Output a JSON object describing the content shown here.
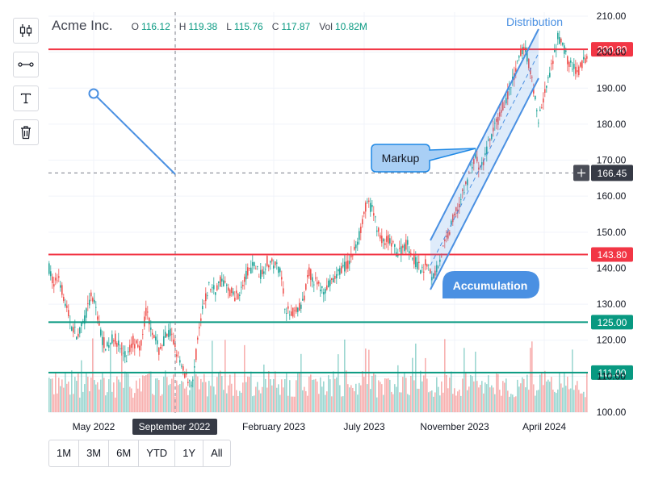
{
  "legend": {
    "ticker": "Acme Inc.",
    "open_label": "O",
    "open": "116.12",
    "high_label": "H",
    "high": "119.38",
    "low_label": "L",
    "low": "115.76",
    "close_label": "C",
    "close": "117.87",
    "vol_label": "Vol",
    "vol": "10.82M"
  },
  "toolbar": [
    {
      "name": "candles-icon"
    },
    {
      "name": "trend-line-icon"
    },
    {
      "name": "text-tool-icon"
    },
    {
      "name": "trash-icon"
    }
  ],
  "ranges": [
    "1M",
    "3M",
    "6M",
    "YTD",
    "1Y",
    "All"
  ],
  "colors": {
    "up": "#26a69a",
    "down": "#ef5350",
    "red_line": "#f23645",
    "green_line": "#089981",
    "drawing": "#4a90e2"
  },
  "chart_data": {
    "type": "candlestick",
    "y_axis": {
      "min": 100,
      "max": 210,
      "ticks": [
        "100.00",
        "110.00",
        "120.00",
        "130.00",
        "140.00",
        "150.00",
        "160.00",
        "170.00",
        "180.00",
        "190.00",
        "200.00",
        "210.00"
      ]
    },
    "x_axis": {
      "ticks": [
        "May 2022",
        "September 2022",
        "February 2023",
        "July 2023",
        "November 2023",
        "April 2024"
      ],
      "crosshair_label": "September 2022"
    },
    "price_path": [
      [
        0,
        140
      ],
      [
        6,
        135
      ],
      [
        12,
        138
      ],
      [
        20,
        130
      ],
      [
        28,
        124
      ],
      [
        36,
        121
      ],
      [
        44,
        126
      ],
      [
        52,
        132
      ],
      [
        58,
        129
      ],
      [
        66,
        120
      ],
      [
        72,
        118
      ],
      [
        80,
        121
      ],
      [
        88,
        118
      ],
      [
        96,
        115
      ],
      [
        104,
        120
      ],
      [
        112,
        117
      ],
      [
        120,
        128
      ],
      [
        128,
        123
      ],
      [
        136,
        117
      ],
      [
        144,
        121
      ],
      [
        150,
        122
      ],
      [
        158,
        117
      ],
      [
        164,
        112
      ],
      [
        170,
        110
      ],
      [
        178,
        108
      ],
      [
        184,
        120
      ],
      [
        190,
        128
      ],
      [
        198,
        135
      ],
      [
        206,
        134
      ],
      [
        214,
        137
      ],
      [
        222,
        134
      ],
      [
        230,
        132
      ],
      [
        238,
        134
      ],
      [
        246,
        139
      ],
      [
        254,
        141
      ],
      [
        262,
        138
      ],
      [
        270,
        142
      ],
      [
        278,
        141
      ],
      [
        286,
        140
      ],
      [
        292,
        130
      ],
      [
        298,
        127
      ],
      [
        306,
        128
      ],
      [
        314,
        130
      ],
      [
        322,
        139
      ],
      [
        330,
        136
      ],
      [
        338,
        134
      ],
      [
        346,
        135
      ],
      [
        354,
        137
      ],
      [
        362,
        140
      ],
      [
        370,
        141
      ],
      [
        378,
        145
      ],
      [
        384,
        149
      ],
      [
        390,
        156
      ],
      [
        396,
        158
      ],
      [
        402,
        155
      ],
      [
        408,
        150
      ],
      [
        414,
        147
      ],
      [
        420,
        148
      ],
      [
        426,
        146
      ],
      [
        432,
        144
      ],
      [
        438,
        146
      ],
      [
        444,
        147
      ],
      [
        450,
        143
      ],
      [
        456,
        141
      ],
      [
        462,
        139
      ],
      [
        468,
        142
      ],
      [
        474,
        137
      ],
      [
        480,
        140
      ],
      [
        486,
        144
      ],
      [
        492,
        148
      ],
      [
        498,
        152
      ],
      [
        504,
        156
      ],
      [
        510,
        159
      ],
      [
        516,
        163
      ],
      [
        522,
        168
      ],
      [
        528,
        171
      ],
      [
        534,
        167
      ],
      [
        540,
        171
      ],
      [
        546,
        176
      ],
      [
        552,
        179
      ],
      [
        558,
        182
      ],
      [
        564,
        186
      ],
      [
        570,
        189
      ],
      [
        576,
        193
      ],
      [
        582,
        198
      ],
      [
        588,
        202
      ],
      [
        594,
        197
      ],
      [
        600,
        190
      ],
      [
        606,
        181
      ],
      [
        612,
        187
      ],
      [
        618,
        192
      ],
      [
        624,
        197
      ],
      [
        630,
        204
      ],
      [
        636,
        202
      ],
      [
        642,
        198
      ],
      [
        648,
        196
      ],
      [
        654,
        194
      ],
      [
        660,
        197
      ],
      [
        666,
        199
      ]
    ],
    "horizontal_lines": [
      {
        "value": 200.8,
        "label": "200.80",
        "color": "#f23645"
      },
      {
        "value": 143.8,
        "label": "143.80",
        "color": "#f23645"
      },
      {
        "value": 125.0,
        "label": "125.00",
        "color": "#089981"
      },
      {
        "value": 111.0,
        "label": "111.00",
        "color": "#089981"
      }
    ],
    "crosshair": {
      "value": 166.45,
      "label": "166.45"
    },
    "annotations": {
      "distribution": "Distribution",
      "accumulation": "Accumulation",
      "markup": "Markup"
    }
  }
}
